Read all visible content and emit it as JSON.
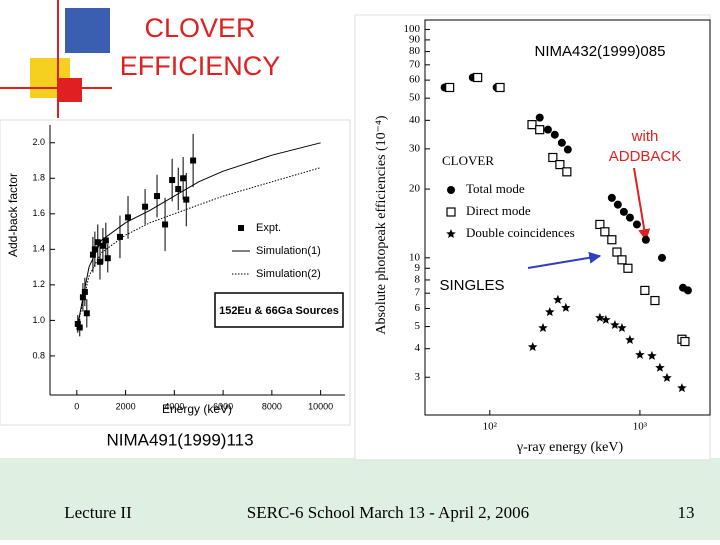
{
  "slide": {
    "title_lines": [
      "CLOVER",
      "EFFICIENCY"
    ],
    "footer": {
      "left": "Lecture II",
      "center": "SERC-6 School March 13 - April 2, 2006",
      "page": "13"
    },
    "annotations": {
      "left_ref": "NIMA491(1999)113",
      "right_ref": "NIMA432(1999)085",
      "addback": [
        "with",
        "ADDBACK"
      ],
      "singles": "SINGLES"
    }
  },
  "charts": [
    {
      "type": "scatter",
      "x_label": "Energy (keV)",
      "y_label": "Add-back factor",
      "xlim": [
        -1100,
        11000
      ],
      "xticks": [
        0,
        2000,
        4000,
        6000,
        8000,
        10000
      ],
      "ylim": [
        0.58,
        2.1
      ],
      "yticks": [
        {
          "value": 0.8,
          "label": "0.8"
        },
        {
          "value": 1.0,
          "label": "1.0"
        },
        {
          "value": 1.2,
          "label": "1.2"
        },
        {
          "value": 1.4,
          "label": "1.4"
        },
        {
          "value": 1.6,
          "label": "1.6"
        },
        {
          "value": 1.8,
          "label": "1.8"
        },
        {
          "value": 2.0,
          "label": "2.0"
        }
      ],
      "source_label": "152Eu & 66Ga Sources",
      "series": [
        {
          "name": "Expt.",
          "color": "#000000",
          "marker": "square",
          "x": [
            40,
            120,
            250,
            330,
            410,
            660,
            740,
            860,
            950,
            1070,
            1190,
            1270,
            1770,
            2100,
            2800,
            3290,
            3620,
            3910,
            4160,
            4360,
            4490,
            4770
          ],
          "values": [
            0.98,
            0.96,
            1.13,
            1.16,
            1.04,
            1.37,
            1.4,
            1.44,
            1.33,
            1.42,
            1.45,
            1.35,
            1.47,
            1.58,
            1.64,
            1.7,
            1.54,
            1.79,
            1.74,
            1.8,
            1.68,
            1.9
          ],
          "errors": [
            0.05,
            0.05,
            0.08,
            0.08,
            0.08,
            0.1,
            0.1,
            0.1,
            0.1,
            0.1,
            0.1,
            0.08,
            0.12,
            0.12,
            0.1,
            0.12,
            0.15,
            0.12,
            0.12,
            0.12,
            0.15,
            0.15
          ]
        },
        {
          "name": "Simulation(1)",
          "color": "#000000",
          "marker": "solid-line",
          "x": [
            0,
            500,
            1000,
            2000,
            3000,
            4000,
            5000,
            6000,
            8000,
            10000
          ],
          "values": [
            0.95,
            1.3,
            1.45,
            1.55,
            1.62,
            1.7,
            1.78,
            1.84,
            1.93,
            2.0
          ]
        },
        {
          "name": "Simulation(2)",
          "color": "#000000",
          "marker": "dotted-line",
          "x": [
            0,
            500,
            1000,
            2000,
            3000,
            4000,
            5000,
            6000,
            8000,
            10000
          ],
          "values": [
            0.95,
            1.25,
            1.38,
            1.48,
            1.55,
            1.6,
            1.65,
            1.7,
            1.78,
            1.86
          ]
        }
      ]
    },
    {
      "type": "scatter",
      "x_label": "γ-ray energy (keV)",
      "y_label": "Absolute photopeak efficiencies (10⁻⁴)",
      "xscale": "log",
      "yscale": "log",
      "legend_title": "CLOVER",
      "xlim": [
        37,
        2930
      ],
      "xticks": [
        {
          "value": 100,
          "label": "10²"
        },
        {
          "value": 1000,
          "label": "10³"
        }
      ],
      "ylim": [
        2.05,
        110
      ],
      "yticks": [
        3,
        4,
        5,
        6,
        7,
        8,
        9,
        10,
        20,
        30,
        40,
        50,
        60,
        70,
        80,
        90,
        100
      ],
      "series": [
        {
          "name": "Total mode",
          "color": "#000000",
          "marker": "circle",
          "x": [
            50,
            77,
            111,
            215,
            244,
            271,
            302,
            331,
            650,
            713,
            782,
            858,
            955,
            1096,
            1403,
            1936,
            2089
          ],
          "values": [
            55.7,
            61.6,
            55.7,
            41.1,
            36.4,
            34.6,
            31.9,
            29.8,
            18.3,
            17.1,
            15.9,
            15.0,
            14.0,
            12.0,
            10.0,
            7.4,
            7.2
          ]
        },
        {
          "name": "Direct mode",
          "color": "#000000",
          "marker": "open-square",
          "x": [
            54,
            83,
            117,
            191,
            215,
            263,
            293,
            326,
            541,
            584,
            650,
            703,
            759,
            832,
            1079,
            1259,
            1905,
            1995
          ],
          "values": [
            55.7,
            61.6,
            55.7,
            38.3,
            36.4,
            27.5,
            25.6,
            23.8,
            14.0,
            13.0,
            12.0,
            10.6,
            9.8,
            9.0,
            7.2,
            6.5,
            4.4,
            4.3
          ]
        },
        {
          "name": "Double coincidences",
          "color": "#000000",
          "marker": "star",
          "x": [
            193,
            226,
            251,
            284,
            321,
            541,
            593,
            681,
            759,
            858,
            1000,
            1202,
            1359,
            1514,
            1905
          ],
          "values": [
            4.07,
            4.93,
            5.79,
            6.55,
            6.04,
            5.46,
            5.35,
            5.08,
            4.93,
            4.37,
            3.76,
            3.72,
            3.3,
            2.98,
            2.69
          ]
        }
      ]
    }
  ]
}
